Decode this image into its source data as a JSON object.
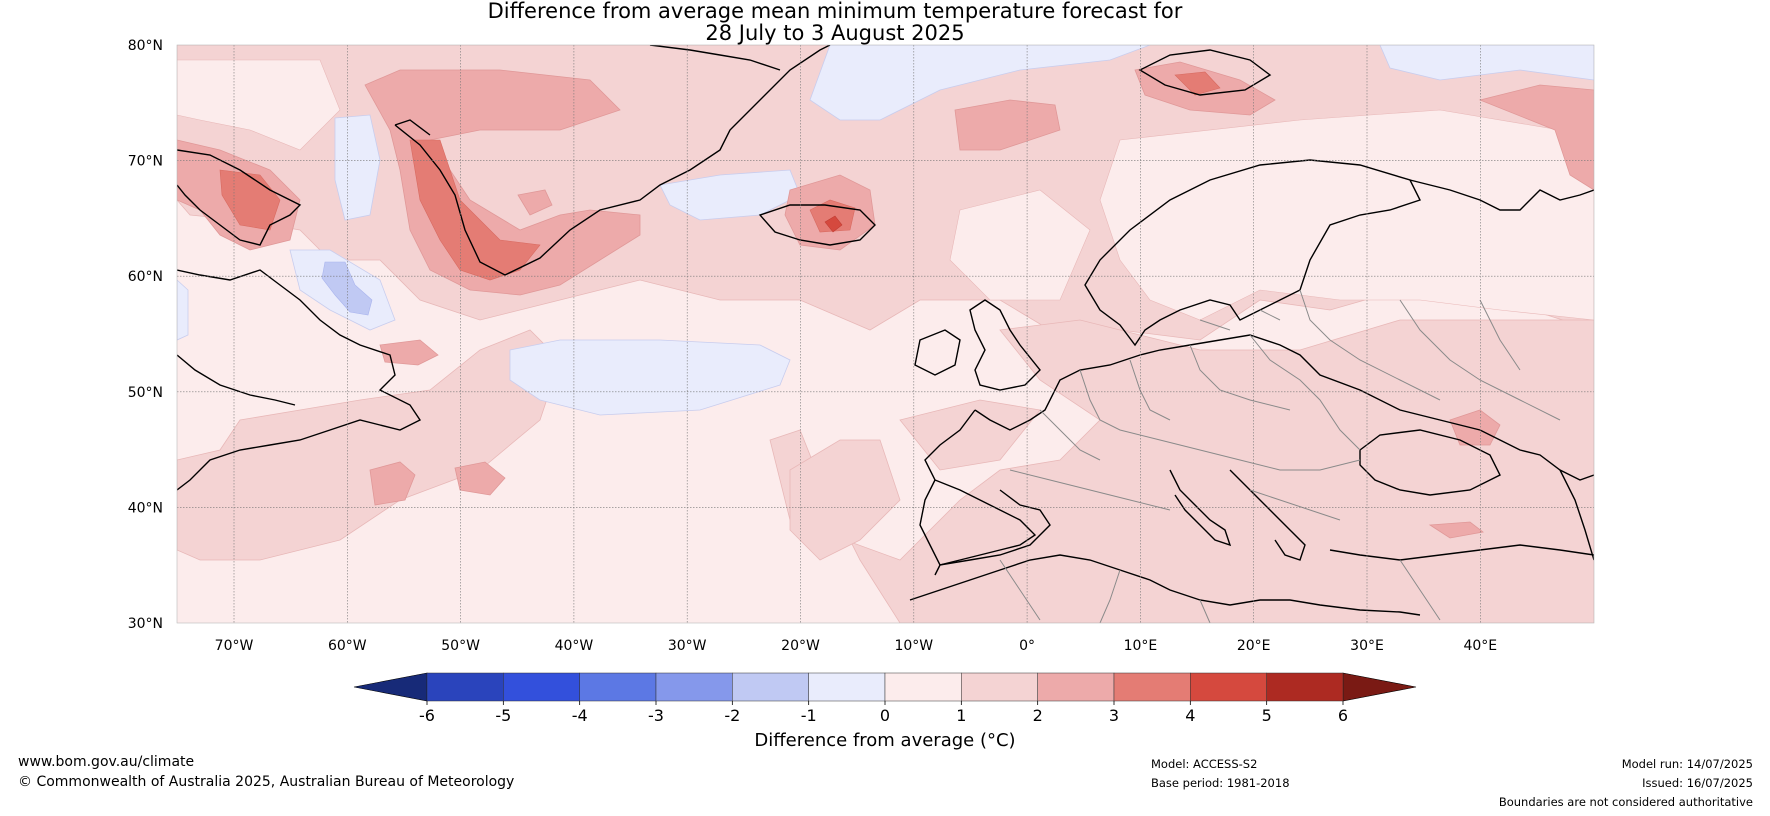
{
  "title": {
    "line1": "Difference from average mean minimum temperature forecast for",
    "line2": "28 July to 3 August 2025"
  },
  "map": {
    "lat_labels": [
      "80°N",
      "70°N",
      "60°N",
      "50°N",
      "40°N",
      "30°N"
    ],
    "lon_labels": [
      "70°W",
      "60°W",
      "50°W",
      "40°W",
      "30°W",
      "20°W",
      "10°W",
      "0°",
      "10°E",
      "20°E",
      "30°E",
      "40°E"
    ]
  },
  "colorbar": {
    "ticks": [
      "-6",
      "-5",
      "-4",
      "-3",
      "-2",
      "-1",
      "0",
      "1",
      "2",
      "3",
      "4",
      "5",
      "6"
    ],
    "colors": [
      "#1f3796",
      "#2a44bc",
      "#3350dc",
      "#5c78e4",
      "#8598eb",
      "#c0c9f3",
      "#e9ecfc",
      "#fcecec",
      "#f4d3d3",
      "#edaaaa",
      "#e47c74",
      "#d5493e",
      "#ad2a22"
    ],
    "under_color": "#172a78",
    "over_color": "#7a1a14",
    "label": "Difference from average (°C)"
  },
  "footer": {
    "website": "www.bom.gov.au/climate",
    "copyright": "© Commonwealth of Australia 2025, Australian Bureau of Meteorology",
    "model": "Model: ACCESS-S2",
    "base_period": "Base period: 1981-2018",
    "model_run": "Model run: 14/07/2025",
    "issued": "Issued: 16/07/2025",
    "disclaimer": "Boundaries are not considered authoritative"
  }
}
